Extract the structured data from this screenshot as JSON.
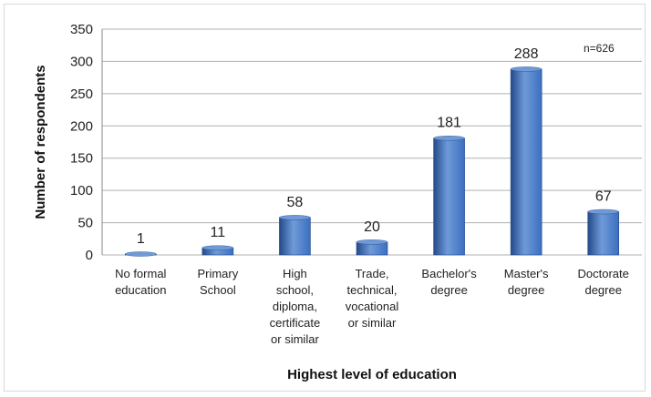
{
  "chart_data": {
    "type": "bar",
    "categories": [
      [
        "No formal",
        "education"
      ],
      [
        "Primary",
        "School"
      ],
      [
        "High",
        "school,",
        "diploma,",
        "certificate",
        "or similar"
      ],
      [
        "Trade,",
        "technical,",
        "vocational",
        "or similar"
      ],
      [
        "Bachelor's",
        "degree"
      ],
      [
        "Master's",
        "degree"
      ],
      [
        "Doctorate",
        "degree"
      ]
    ],
    "values": [
      1,
      11,
      58,
      20,
      181,
      288,
      67
    ],
    "xlabel": "Highest level of education",
    "ylabel": "Number of respondents",
    "ylim": [
      0,
      350
    ],
    "yticks": [
      0,
      50,
      100,
      150,
      200,
      250,
      300,
      350
    ],
    "grid": true,
    "annotation": "n=626",
    "colors": {
      "bar": "#3b6fbf",
      "bar_dark": "#234a8a",
      "bar_light": "#6f9ad8",
      "grid": "#b0b0b0"
    }
  }
}
